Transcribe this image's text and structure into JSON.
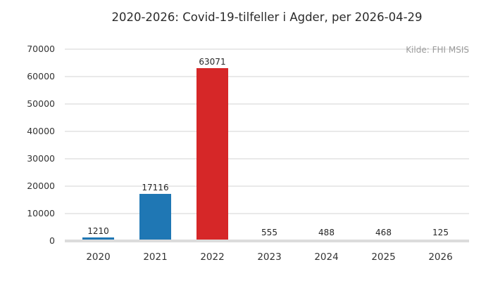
{
  "chart_data": {
    "type": "bar",
    "title": "2020-2026: Covid-19-tilfeller i Agder, per 2026-04-29",
    "source": "Kilde: FHI MSIS",
    "categories": [
      "2020",
      "2021",
      "2022",
      "2023",
      "2024",
      "2025",
      "2026"
    ],
    "values": [
      1210,
      17116,
      63071,
      555,
      488,
      468,
      125
    ],
    "bar_colors": [
      "#1f77b4",
      "#1f77b4",
      "#d62728",
      "#1f77b4",
      "#1f77b4",
      "#1f77b4",
      "#1f77b4"
    ],
    "value_labels": [
      "1210",
      "17116",
      "63071",
      "555",
      "488",
      "468",
      "125"
    ],
    "ylim": [
      0,
      70000
    ],
    "yticks": [
      0,
      10000,
      20000,
      30000,
      40000,
      50000,
      60000,
      70000
    ],
    "grid": "horizontal",
    "legend": "none",
    "colors": {
      "blue": "#1f77b4",
      "red": "#d62728",
      "gridline": "#e9e9e9",
      "baseline": "#dcdcdc",
      "text": "#333333",
      "muted_text": "#9b9b9b"
    }
  }
}
